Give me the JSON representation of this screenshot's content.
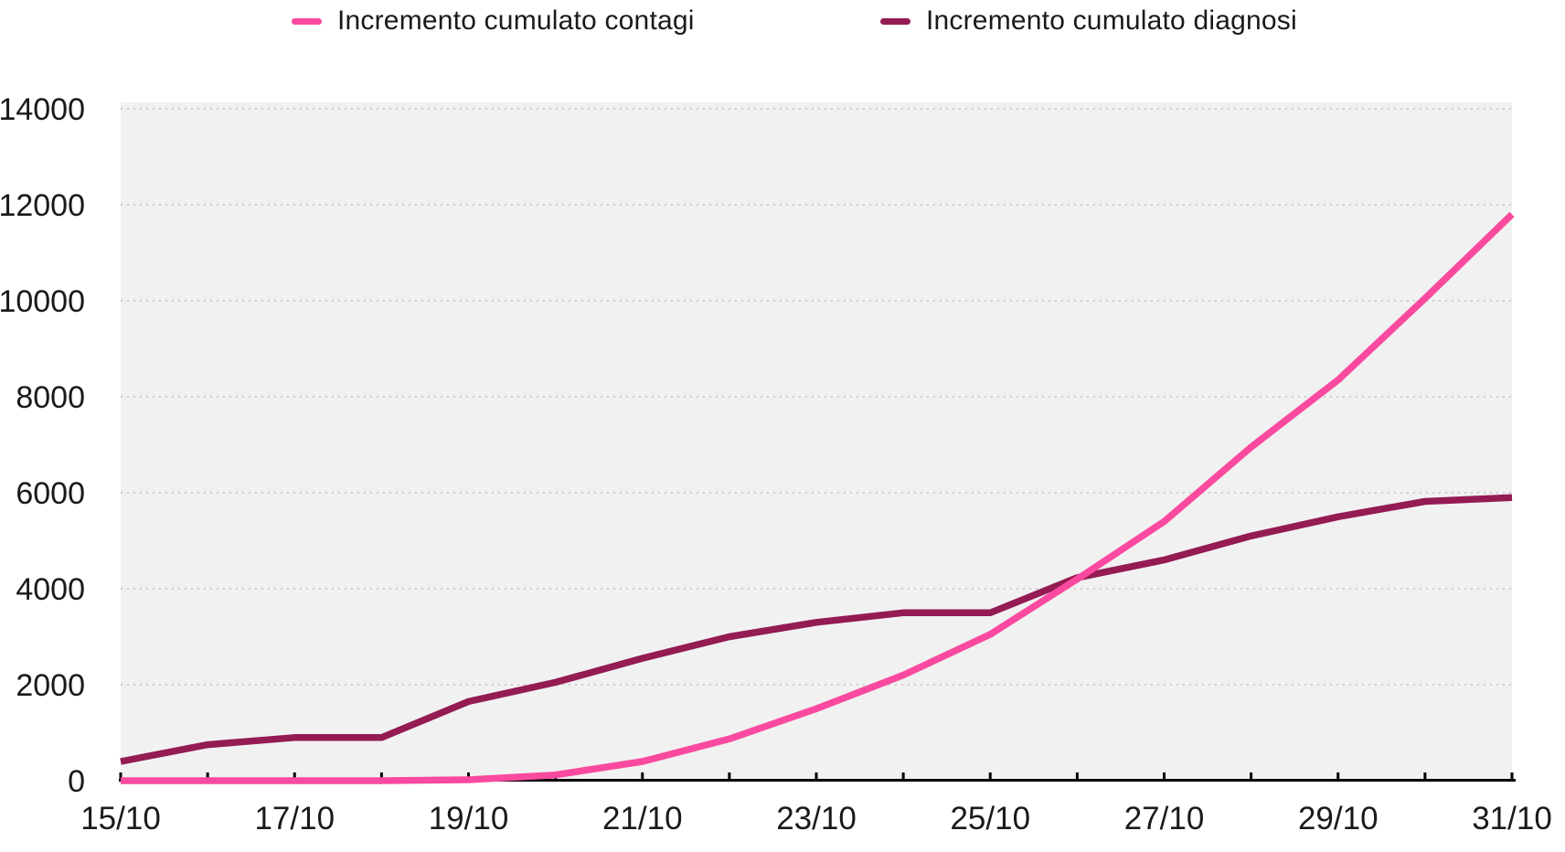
{
  "legend": {
    "items": [
      {
        "label": "Incremento cumulato contagi",
        "color": "#fa4a9f"
      },
      {
        "label": "Incremento cumulato diagnosi",
        "color": "#941b53"
      }
    ]
  },
  "chart_data": {
    "type": "line",
    "title": "",
    "xlabel": "",
    "ylabel": "",
    "x": [
      "15/10",
      "16/10",
      "17/10",
      "18/10",
      "19/10",
      "20/10",
      "21/10",
      "22/10",
      "23/10",
      "24/10",
      "25/10",
      "26/10",
      "27/10",
      "28/10",
      "29/10",
      "30/10",
      "31/10"
    ],
    "x_labels_shown_every": 2,
    "series": [
      {
        "name": "Incremento cumulato contagi",
        "color": "#fa4a9f",
        "values": [
          0,
          0,
          0,
          0,
          20,
          120,
          400,
          870,
          1500,
          2200,
          3050,
          4200,
          5400,
          6950,
          8350,
          10050,
          11800
        ]
      },
      {
        "name": "Incremento cumulato diagnosi",
        "color": "#941b53",
        "values": [
          400,
          750,
          900,
          900,
          1650,
          2050,
          2550,
          3000,
          3300,
          3500,
          3500,
          4230,
          4600,
          5100,
          5500,
          5820,
          5900
        ]
      }
    ],
    "ylim": [
      0,
      14000
    ],
    "y_ticks": [
      0,
      2000,
      4000,
      6000,
      8000,
      10000,
      12000,
      14000
    ],
    "grid": "horizontal-dotted",
    "legend_position": "top",
    "colors": {
      "plot_background": "#f1f1f1",
      "gridline": "#cccccc",
      "axis": "#000000",
      "tick_label": "#1a1a1a"
    }
  }
}
